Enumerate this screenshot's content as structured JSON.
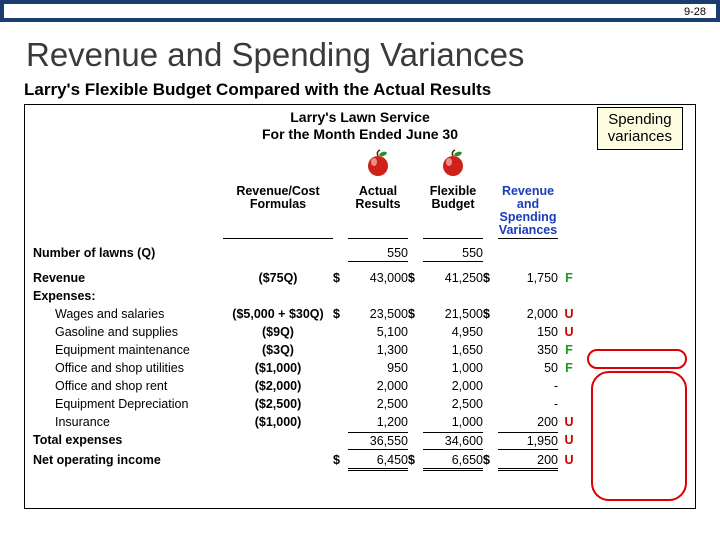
{
  "slide_number": "9-28",
  "title": "Revenue and Spending Variances",
  "subtitle": "Larry's Flexible Budget Compared with the Actual Results",
  "callout": "Spending\nvariances",
  "company_line1": "Larry's Lawn Service",
  "company_line2": "For the Month Ended June 30",
  "headers": {
    "c1": "Revenue/Cost Formulas",
    "c2": "Actual Results",
    "c3": "Flexible Budget",
    "c4": "Revenue and Spending Variances"
  },
  "q_label": "Number of lawns (Q)",
  "q_actual": "550",
  "q_budget": "550",
  "rev_label": "Revenue",
  "rev_formula": "($75Q)",
  "rev_actual": "43,000",
  "rev_budget": "41,250",
  "rev_var": "1,750",
  "rev_flag": "F",
  "exp_label": "Expenses:",
  "rows": [
    {
      "label": "Wages and salaries",
      "formula": "($5,000 + $30Q)",
      "actual": "23,500",
      "budget": "21,500",
      "var": "2,000",
      "flag": "U",
      "dol": true
    },
    {
      "label": "Gasoline and supplies",
      "formula": "($9Q)",
      "actual": "5,100",
      "budget": "4,950",
      "var": "150",
      "flag": "U"
    },
    {
      "label": "Equipment maintenance",
      "formula": "($3Q)",
      "actual": "1,300",
      "budget": "1,650",
      "var": "350",
      "flag": "F"
    },
    {
      "label": "Office and shop utilities",
      "formula": "($1,000)",
      "actual": "950",
      "budget": "1,000",
      "var": "50",
      "flag": "F"
    },
    {
      "label": "Office and shop rent",
      "formula": "($2,000)",
      "actual": "2,000",
      "budget": "2,000",
      "var": "-",
      "flag": ""
    },
    {
      "label": "Equipment Depreciation",
      "formula": "($2,500)",
      "actual": "2,500",
      "budget": "2,500",
      "var": "-",
      "flag": ""
    },
    {
      "label": "Insurance",
      "formula": "($1,000)",
      "actual": "1,200",
      "budget": "1,000",
      "var": "200",
      "flag": "U"
    }
  ],
  "total_exp_label": "Total expenses",
  "total_exp_actual": "36,550",
  "total_exp_budget": "34,600",
  "total_exp_var": "1,950",
  "total_exp_flag": "U",
  "noi_label": "Net operating income",
  "noi_actual": "6,450",
  "noi_budget": "6,650",
  "noi_var": "200",
  "noi_flag": "U",
  "dollar": "$",
  "colors": {
    "bar": "#1a3d6d",
    "hdr_blue": "#1a3db8",
    "callout_bg": "#fffde0",
    "flag_f": "#1a9c1a",
    "flag_u": "#c00",
    "oval": "#d00"
  }
}
